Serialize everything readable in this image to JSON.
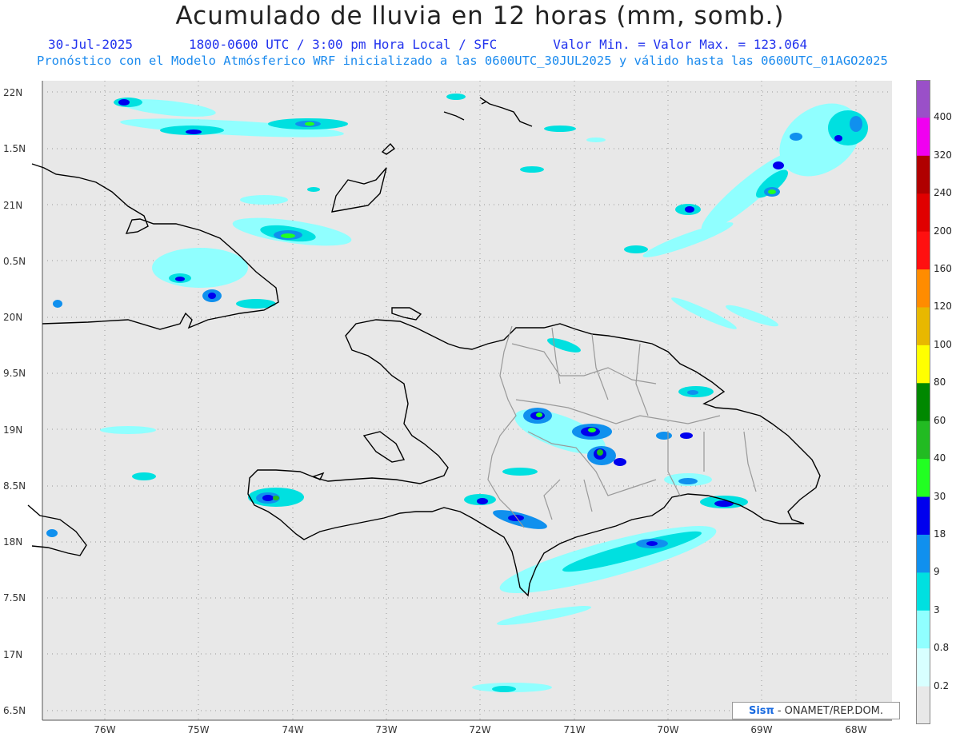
{
  "header": {
    "title": "Acumulado de lluvia en 12 horas (mm, somb.)",
    "date": "30-Jul-2025",
    "period": "1800-0600 UTC / 3:00 pm Hora Local / SFC",
    "stats": "Valor Min. =   Valor Max. = 123.064",
    "model": "Pronóstico con el Modelo Atmósferico WRF inicializado a las 0600UTC_30JUL2025 y válido hasta las  0600UTC_01AGO2025"
  },
  "axes": {
    "lon_labels": [
      "76W",
      "75W",
      "74W",
      "73W",
      "72W",
      "71W",
      "70W",
      "69W",
      "68W"
    ],
    "lat_labels": [
      "22N",
      "1.5N",
      "21N",
      "0.5N",
      "20N",
      "9.5N",
      "19N",
      "8.5N",
      "18N",
      "7.5N",
      "17N",
      "6.5N"
    ]
  },
  "legend": {
    "levels": [
      "400",
      "320",
      "240",
      "200",
      "160",
      "120",
      "100",
      "80",
      "60",
      "40",
      "30",
      "18",
      "9",
      "3",
      "0.8",
      "0.2"
    ],
    "colors": [
      "#9a50c8",
      "#f000f0",
      "#b00000",
      "#e00000",
      "#ff1010",
      "#ff8c00",
      "#e8b800",
      "#ffff00",
      "#008800",
      "#22bb22",
      "#22ff22",
      "#0000ee",
      "#1090ee",
      "#00e0e0",
      "#90ffff",
      "#d8ffff",
      "#e8e8e8"
    ]
  },
  "credit": {
    "brand": "Sisπ",
    "text": "- ONAMET/REP.DOM."
  }
}
